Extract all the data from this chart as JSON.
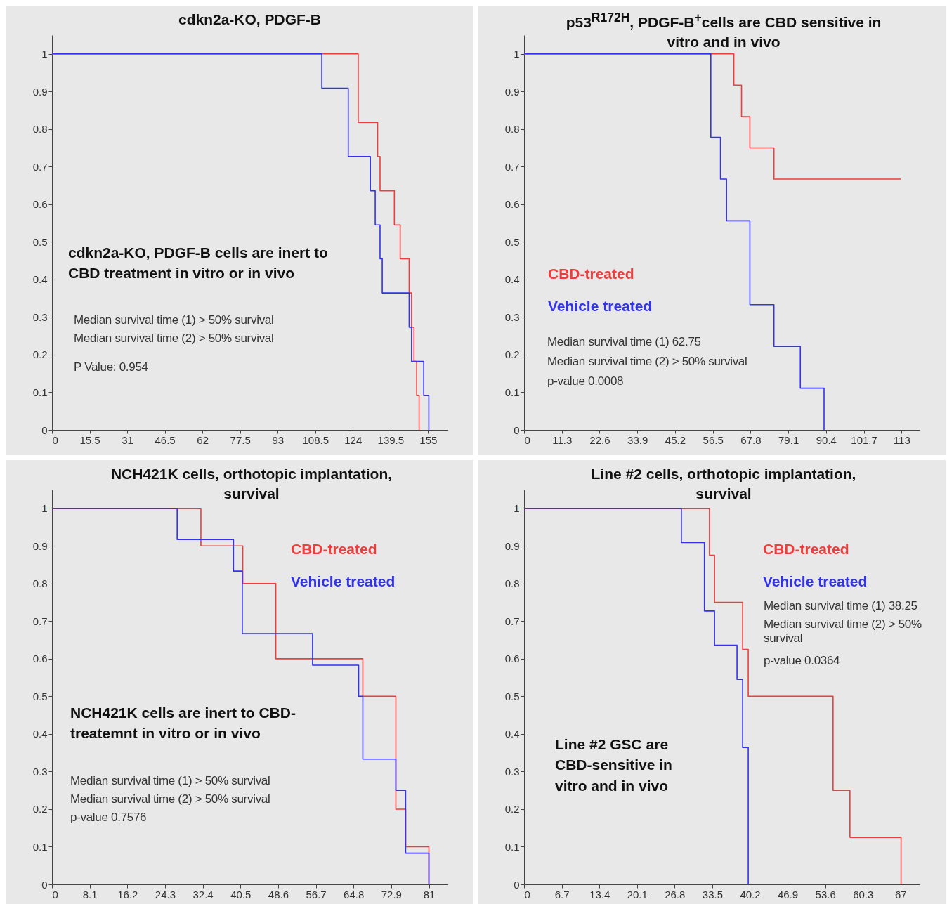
{
  "chart_data": [
    {
      "type": "step",
      "title": "cdkn2a-KO, PDGF-B",
      "xlim": [
        0,
        163
      ],
      "ylim": [
        0,
        1.05
      ],
      "xticks": [
        0,
        15.5,
        31,
        46.5,
        62,
        77.5,
        93,
        108.5,
        124,
        139.5,
        155
      ],
      "yticks": [
        0,
        0.1,
        0.2,
        0.3,
        0.4,
        0.5,
        0.6,
        0.7,
        0.8,
        0.9,
        1
      ],
      "annotations": [
        "cdkn2a-KO, PDGF-B cells are inert to CBD treatment in vitro or in vivo",
        "Median survival time (1) > 50% survival",
        "Median survival time (2) > 50% survival",
        "P Value: 0.954"
      ],
      "series": [
        {
          "color": "#f03c3c",
          "x": [
            0,
            126.2,
            134.2,
            135.2,
            141.1,
            143.5,
            147.2,
            148.2,
            149.2,
            150.3,
            151.3
          ],
          "values": [
            1,
            0.818,
            0.727,
            0.636,
            0.545,
            0.455,
            0.364,
            0.273,
            0.182,
            0.091,
            0
          ]
        },
        {
          "color": "#3232f0",
          "x": [
            0,
            111.2,
            122.1,
            131.2,
            133.2,
            135.2,
            136.1,
            147.2,
            148.2,
            153.2,
            155.3
          ],
          "values": [
            1,
            0.909,
            0.727,
            0.636,
            0.545,
            0.455,
            0.364,
            0.273,
            0.182,
            0.091,
            0
          ]
        }
      ]
    },
    {
      "type": "step",
      "title": "p53$^{R172H}$, PDGF-B$^{+}$cells are CBD sensitive in vitro and in vivo",
      "xlim": [
        0,
        118.4
      ],
      "ylim": [
        0,
        1.05
      ],
      "xticks": [
        0,
        11.3,
        22.6,
        33.9,
        45.2,
        56.5,
        67.8,
        79.1,
        90.4,
        101.7,
        113
      ],
      "yticks": [
        0,
        0.1,
        0.2,
        0.3,
        0.4,
        0.5,
        0.6,
        0.7,
        0.8,
        0.9,
        1
      ],
      "legend": "left",
      "annotations": [
        "Median survival time (1) 62.75",
        "Median survival time (2) > 50% survival",
        "p-value 0.0008"
      ],
      "series": [
        {
          "name": "CBD-treated",
          "color": "#f03c3c",
          "x": [
            0,
            62.8,
            65.1,
            67.6,
            74.8,
            112.8
          ],
          "values": [
            1,
            0.917,
            0.833,
            0.75,
            0.667,
            0.667
          ]
        },
        {
          "name": "Vehicle treated",
          "color": "#3232f0",
          "x": [
            0,
            55.9,
            58.8,
            60.6,
            67.6,
            74.8,
            82.7,
            89.8
          ],
          "values": [
            1,
            0.778,
            0.667,
            0.556,
            0.333,
            0.222,
            0.111,
            0
          ]
        }
      ]
    },
    {
      "type": "step",
      "title": "NCH421K cells, orthotopic implantation, survival",
      "xlim": [
        0,
        85
      ],
      "ylim": [
        0,
        1.05
      ],
      "xticks": [
        0,
        8.1,
        16.2,
        24.3,
        32.4,
        40.5,
        48.6,
        56.7,
        64.8,
        72.9,
        81
      ],
      "yticks": [
        0,
        0.1,
        0.2,
        0.3,
        0.4,
        0.5,
        0.6,
        0.7,
        0.8,
        0.9,
        1
      ],
      "legend": "top right",
      "annotations": [
        "NCH421K cells are inert to CBD-treatemnt in vitro or in vivo",
        "Median survival time (1) > 50% survival",
        "Median survival time (2) > 50% survival",
        "p-value 0.7576"
      ],
      "series": [
        {
          "name": "CBD-treated",
          "color": "#f03c3c",
          "x": [
            0,
            32.0,
            41.0,
            48.1,
            66.8,
            73.9,
            76.0,
            81
          ],
          "values": [
            1,
            0.9,
            0.8,
            0.6,
            0.5,
            0.2,
            0.1,
            0
          ]
        },
        {
          "name": "Vehicle treated",
          "color": "#3232f0",
          "x": [
            0,
            26.9,
            39.0,
            40.9,
            56.0,
            65.9,
            66.8,
            73.9,
            76.0,
            81
          ],
          "values": [
            1,
            0.917,
            0.833,
            0.667,
            0.583,
            0.5,
            0.333,
            0.25,
            0.083,
            0
          ]
        }
      ]
    },
    {
      "type": "step",
      "title": "Line #2 cells, orthotopic implantation, survival",
      "xlim": [
        0,
        70.4
      ],
      "ylim": [
        0,
        1.05
      ],
      "xticks": [
        0,
        6.7,
        13.4,
        20.1,
        26.8,
        33.5,
        40.2,
        46.9,
        53.6,
        60.3,
        67
      ],
      "yticks": [
        0,
        0.1,
        0.2,
        0.3,
        0.4,
        0.5,
        0.6,
        0.7,
        0.8,
        0.9,
        1
      ],
      "legend": "top right",
      "annotations": [
        "Median survival time (1) 38.25",
        "Median survival time (2) > 50% survival",
        "p-value 0.0364",
        "Line #2 GSC are CBD-sensitive in vitro and in vivo"
      ],
      "series": [
        {
          "name": "CBD-treated",
          "color": "#f03c3c",
          "x": [
            0,
            33.0,
            33.9,
            38.9,
            39.9,
            55.0,
            58.0,
            67.1
          ],
          "values": [
            1,
            0.875,
            0.75,
            0.625,
            0.5,
            0.25,
            0.125,
            0
          ]
        },
        {
          "name": "Vehicle treated",
          "color": "#3232f0",
          "x": [
            0,
            28.0,
            32.1,
            33.9,
            37.9,
            38.9,
            39.9
          ],
          "values": [
            1,
            0.909,
            0.727,
            0.636,
            0.545,
            0.364,
            0
          ]
        }
      ]
    }
  ]
}
